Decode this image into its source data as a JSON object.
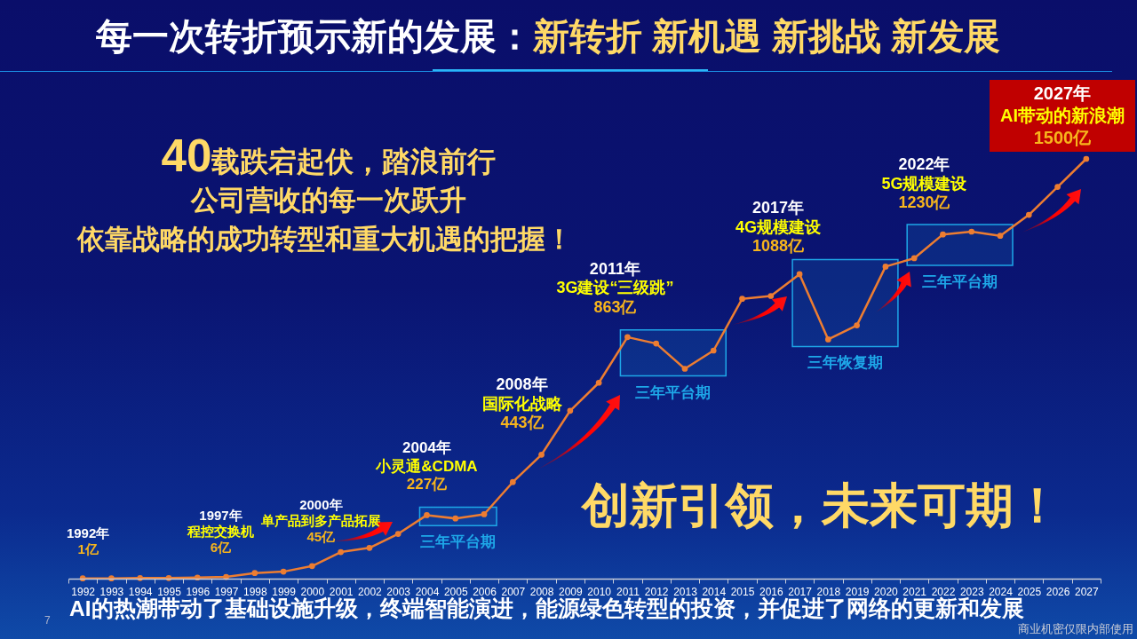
{
  "chart_data": {
    "type": "line",
    "title": "每一次转折预示新的发展：",
    "subtitle": "新转折 新机遇 新挑战 新发展",
    "categories": [
      "1992",
      "1993",
      "1994",
      "1995",
      "1996",
      "1997",
      "1998",
      "1999",
      "2000",
      "2001",
      "2002",
      "2003",
      "2004",
      "2005",
      "2006",
      "2007",
      "2008",
      "2009",
      "2010",
      "2011",
      "2012",
      "2013",
      "2014",
      "2015",
      "2016",
      "2017",
      "2018",
      "2019",
      "2020",
      "2021",
      "2022",
      "2023",
      "2024",
      "2025",
      "2026",
      "2027"
    ],
    "values": [
      1,
      1,
      2,
      2,
      4,
      6,
      20,
      25,
      45,
      95,
      110,
      160,
      227,
      215,
      230,
      345,
      443,
      600,
      700,
      863,
      840,
      750,
      815,
      1000,
      1010,
      1088,
      855,
      905,
      1115,
      1145,
      1230,
      1240,
      1225,
      1300,
      1400,
      1500
    ],
    "value_labels": [
      "1亿",
      null,
      null,
      null,
      null,
      "6亿",
      null,
      null,
      "45亿",
      null,
      null,
      null,
      "227亿",
      null,
      null,
      null,
      "443亿",
      null,
      null,
      "863亿",
      null,
      null,
      null,
      null,
      null,
      "1088亿",
      null,
      null,
      null,
      null,
      "1230亿",
      null,
      null,
      null,
      null,
      "1500亿"
    ],
    "color": "#ed7d31",
    "marker": "circle",
    "tick_labels": "x",
    "bands": [
      {
        "axis": "x",
        "from": "2004",
        "to": "2006",
        "label": "三年平台期",
        "color": "#1ea7e8"
      },
      {
        "axis": "x",
        "from": "2011",
        "to": "2014",
        "label": "三年平台期",
        "color": "#1ea7e8"
      },
      {
        "axis": "x",
        "from": "2017",
        "to": "2020",
        "label": "三年恢复期",
        "color": "#1ea7e8"
      },
      {
        "axis": "x",
        "from": "2021",
        "to": "2024",
        "label": "三年平台期",
        "color": "#1ea7e8"
      }
    ],
    "annotations": [
      "40载跌宕起伏，踏浪前行",
      "公司营收的每一次跃升",
      "依靠战略的成功转型和重大机遇的把握！",
      "1992年",
      "1997年",
      "程控交换机",
      "2000年",
      "单产品到多产品拓展",
      "2004年",
      "小灵通&CDMA",
      "2008年",
      "国际化战略",
      "2011年",
      "3G建设“三级跳”",
      "2017年",
      "4G规模建设",
      "2022年",
      "5G规模建设",
      "2027年",
      "AI带动的新浪潮",
      "创新引领，未来可期！",
      "AI的热潮带动了基础设施升级，终端智能演进，能源绿色转型的投资，并促进了网络的更新和发展",
      "7",
      "商业机密仅限内部使用"
    ]
  }
}
